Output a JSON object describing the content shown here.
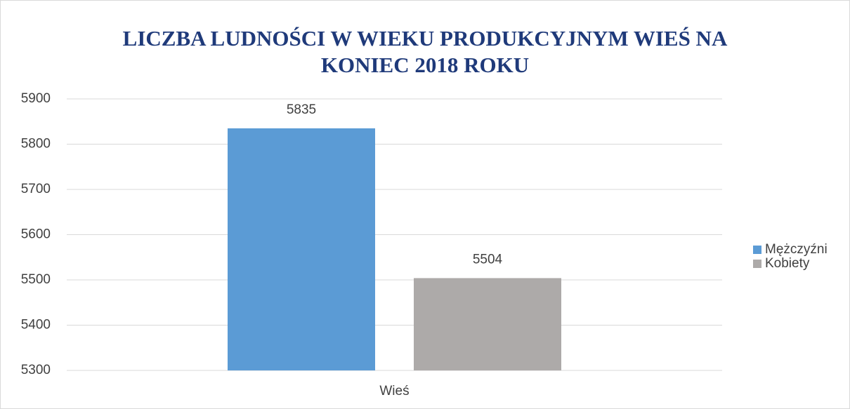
{
  "chart_data": {
    "type": "bar",
    "title": "LICZBA LUDNOŚCI W WIEKU PRODUKCYJNYM WIEŚ NA KONIEC 2018 ROKU",
    "categories": [
      "Wieś"
    ],
    "series": [
      {
        "name": "Mężczyźni",
        "color": "#5b9bd5",
        "values": [
          5835
        ]
      },
      {
        "name": "Kobiety",
        "color": "#adaaa9",
        "values": [
          5504
        ]
      }
    ],
    "ylim": [
      5300,
      5900
    ],
    "yticks": [
      5300,
      5400,
      5500,
      5600,
      5700,
      5800,
      5900
    ],
    "grid": true,
    "legend": "right"
  }
}
